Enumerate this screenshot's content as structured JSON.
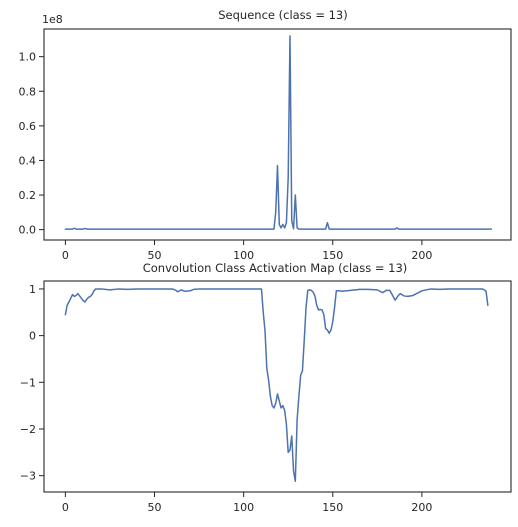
{
  "chart_data": [
    {
      "type": "line",
      "title": "Sequence (class = 13)",
      "offset_label": "1e8",
      "xlim": [
        -12,
        250
      ],
      "ylim": [
        -0.06,
        1.16
      ],
      "xticks": [
        0,
        50,
        100,
        150,
        200
      ],
      "xtick_labels": [
        "0",
        "50",
        "100",
        "150",
        "200"
      ],
      "yticks": [
        0.0,
        0.2,
        0.4,
        0.6,
        0.8,
        1.0
      ],
      "ytick_labels": [
        "0.0",
        "0.2",
        "0.4",
        "0.6",
        "0.8",
        "1.0"
      ],
      "grid": false,
      "series": [
        {
          "color": "#4c72b0",
          "x": [
            0,
            4,
            5,
            6,
            8,
            10,
            11,
            12,
            14,
            117,
            118,
            119,
            120,
            121,
            122,
            123,
            124,
            125,
            126,
            127,
            128,
            129,
            130,
            131,
            132,
            146,
            147,
            148,
            149,
            185,
            186,
            187,
            239
          ],
          "y": [
            0.003,
            0.003,
            0.008,
            0.003,
            0.003,
            0.003,
            0.007,
            0.003,
            0.003,
            0.003,
            0.1,
            0.37,
            0.03,
            0.01,
            0.03,
            0.01,
            0.04,
            0.3,
            1.12,
            0.05,
            0.005,
            0.2,
            0.01,
            0.003,
            0.003,
            0.003,
            0.04,
            0.003,
            0.003,
            0.003,
            0.01,
            0.003,
            0.003
          ]
        }
      ]
    },
    {
      "type": "line",
      "title": "Convolution Class Activation Map (class = 13)",
      "xlim": [
        -12,
        250
      ],
      "ylim": [
        -3.35,
        1.17
      ],
      "xticks": [
        0,
        50,
        100,
        150,
        200
      ],
      "xtick_labels": [
        "0",
        "50",
        "100",
        "150",
        "200"
      ],
      "yticks": [
        -3,
        -2,
        -1,
        0,
        1
      ],
      "ytick_labels": [
        "−3",
        "−2",
        "−1",
        "0",
        "1"
      ],
      "grid": false,
      "series": [
        {
          "color": "#4c72b0",
          "x": [
            0,
            1,
            2,
            3,
            4,
            5,
            6,
            7,
            8,
            9,
            10,
            11,
            12,
            13,
            14,
            15,
            16,
            17,
            18,
            20,
            25,
            30,
            35,
            40,
            45,
            50,
            55,
            60,
            62,
            63,
            65,
            67,
            70,
            72,
            75,
            78,
            80,
            85,
            90,
            95,
            100,
            105,
            109,
            110,
            111,
            112,
            113,
            114,
            115,
            116,
            117,
            118,
            119,
            120,
            121,
            122,
            123,
            124,
            125,
            126,
            127,
            128,
            129,
            130,
            131,
            132,
            133,
            134,
            135,
            136,
            137,
            138,
            139,
            140,
            141,
            142,
            143,
            144,
            145,
            146,
            147,
            148,
            149,
            150,
            151,
            152,
            153,
            154,
            155,
            158,
            160,
            162,
            163,
            165,
            170,
            175,
            178,
            180,
            182,
            183,
            185,
            187,
            188,
            190,
            192,
            195,
            200,
            205,
            210,
            215,
            220,
            225,
            230,
            233,
            234,
            235,
            236,
            237
          ],
          "y": [
            0.45,
            0.65,
            0.72,
            0.8,
            0.88,
            0.84,
            0.86,
            0.9,
            0.85,
            0.8,
            0.75,
            0.72,
            0.78,
            0.82,
            0.84,
            0.88,
            0.96,
            1.0,
            1.0,
            1.0,
            0.98,
            1.0,
            0.99,
            1.0,
            1.0,
            1.0,
            1.0,
            1.0,
            0.97,
            0.94,
            0.98,
            0.95,
            0.96,
            0.99,
            1.0,
            1.0,
            1.0,
            1.0,
            1.0,
            1.0,
            1.0,
            1.0,
            1.0,
            1.0,
            0.5,
            0.1,
            -0.7,
            -0.95,
            -1.3,
            -1.5,
            -1.55,
            -1.45,
            -1.25,
            -1.4,
            -1.55,
            -1.5,
            -1.6,
            -1.9,
            -2.5,
            -2.45,
            -2.15,
            -2.9,
            -3.12,
            -1.8,
            -1.3,
            -0.85,
            -0.75,
            -0.1,
            0.6,
            0.97,
            0.98,
            0.97,
            0.93,
            0.85,
            0.65,
            0.55,
            0.56,
            0.55,
            0.45,
            0.15,
            0.12,
            0.05,
            0.12,
            0.3,
            0.6,
            0.96,
            0.96,
            0.96,
            0.95,
            0.96,
            0.97,
            0.98,
            0.98,
            0.99,
            0.99,
            0.98,
            0.92,
            0.97,
            0.97,
            0.9,
            0.76,
            0.87,
            0.9,
            0.85,
            0.84,
            0.86,
            0.96,
            1.0,
            0.99,
            1.0,
            1.0,
            1.0,
            1.0,
            1.0,
            1.0,
            0.98,
            0.95,
            0.65
          ]
        }
      ]
    }
  ]
}
